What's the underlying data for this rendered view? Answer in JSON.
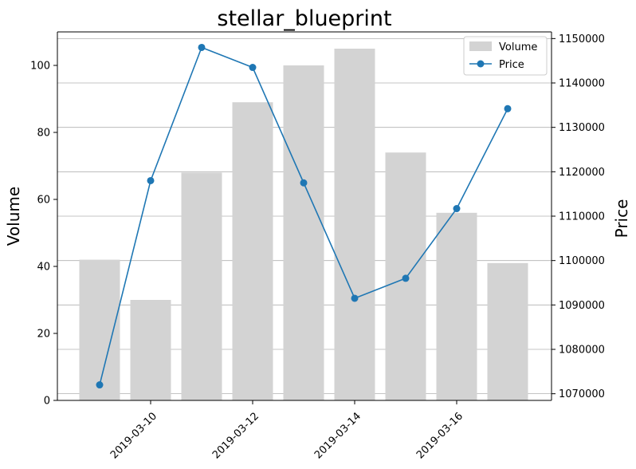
{
  "chart_data": {
    "type": "bar+line",
    "title": "stellar_blueprint",
    "xlabel": "",
    "ylabel_left": "Volume",
    "ylabel_right": "Price",
    "x": [
      "2019-03-09",
      "2019-03-10",
      "2019-03-11",
      "2019-03-12",
      "2019-03-13",
      "2019-03-14",
      "2019-03-15",
      "2019-03-16",
      "2019-03-17"
    ],
    "x_tick_labels": [
      "2019-03-10",
      "2019-03-12",
      "2019-03-14",
      "2019-03-16"
    ],
    "ylim_left": [
      0,
      110
    ],
    "ylim_right": [
      1068500,
      1151500
    ],
    "yticks_left": [
      "0",
      "20",
      "40",
      "60",
      "80",
      "100"
    ],
    "yticks_right": [
      "1070000",
      "1080000",
      "1090000",
      "1100000",
      "1110000",
      "1120000",
      "1130000",
      "1140000",
      "1150000"
    ],
    "grid": "horizontal (right axis)",
    "legend_position": "top-right",
    "series": [
      {
        "name": "Volume",
        "kind": "bar",
        "axis": "left",
        "color": "#d3d3d3",
        "values": [
          42,
          30,
          68,
          89,
          100,
          105,
          74,
          56,
          41
        ]
      },
      {
        "name": "Price",
        "kind": "line",
        "axis": "right",
        "color": "#1f77b4",
        "values": [
          1072000,
          1118000,
          1148000,
          1143500,
          1117500,
          1091500,
          1096000,
          1111700,
          1134200
        ]
      }
    ]
  }
}
